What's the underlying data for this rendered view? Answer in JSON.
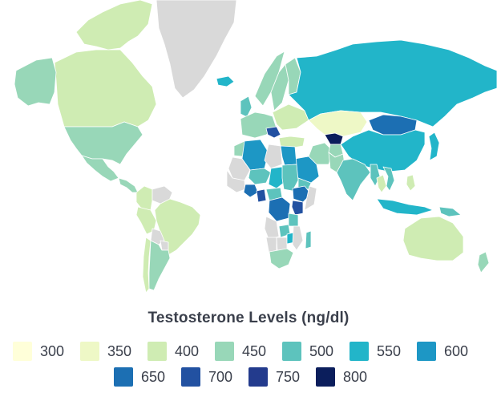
{
  "map": {
    "countries": [
      {
        "name": "Greenland",
        "value": null
      },
      {
        "name": "Canada",
        "value": 400
      },
      {
        "name": "Alaska",
        "value": 450
      },
      {
        "name": "Canadian Arctic Islands",
        "value": 400
      },
      {
        "name": "United States",
        "value": 450
      },
      {
        "name": "Mexico",
        "value": 450
      },
      {
        "name": "Central America",
        "value": 450
      },
      {
        "name": "Colombia",
        "value": 400
      },
      {
        "name": "Venezuela",
        "value": null
      },
      {
        "name": "Brazil",
        "value": 400
      },
      {
        "name": "Peru",
        "value": 400
      },
      {
        "name": "Bolivia",
        "value": null
      },
      {
        "name": "Paraguay",
        "value": null
      },
      {
        "name": "Chile",
        "value": 400
      },
      {
        "name": "Argentina",
        "value": 450
      },
      {
        "name": "Iceland",
        "value": 550
      },
      {
        "name": "United Kingdom",
        "value": 500
      },
      {
        "name": "Norway",
        "value": 450
      },
      {
        "name": "Sweden",
        "value": 450
      },
      {
        "name": "Finland",
        "value": 450
      },
      {
        "name": "Western Europe",
        "value": 450
      },
      {
        "name": "Eastern Europe",
        "value": 400
      },
      {
        "name": "Balkans",
        "value": 700
      },
      {
        "name": "Russia",
        "value": 550
      },
      {
        "name": "Kazakhstan",
        "value": 350
      },
      {
        "name": "Uzbekistan",
        "value": 800
      },
      {
        "name": "Mongolia",
        "value": 650
      },
      {
        "name": "China",
        "value": 550
      },
      {
        "name": "Japan",
        "value": 550
      },
      {
        "name": "Turkey",
        "value": 400
      },
      {
        "name": "Iran",
        "value": 450
      },
      {
        "name": "Saudi Arabia",
        "value": 600
      },
      {
        "name": "Yemen",
        "value": 500
      },
      {
        "name": "Afghanistan",
        "value": 450
      },
      {
        "name": "Pakistan",
        "value": 450
      },
      {
        "name": "India",
        "value": 500
      },
      {
        "name": "Myanmar",
        "value": 500
      },
      {
        "name": "Thailand",
        "value": 400
      },
      {
        "name": "Vietnam",
        "value": 500
      },
      {
        "name": "Indonesia",
        "value": 550
      },
      {
        "name": "Papua New Guinea",
        "value": 500
      },
      {
        "name": "Philippines",
        "value": 400
      },
      {
        "name": "Morocco",
        "value": 450
      },
      {
        "name": "Algeria",
        "value": 600
      },
      {
        "name": "Libya",
        "value": null
      },
      {
        "name": "Egypt",
        "value": 600
      },
      {
        "name": "Mali",
        "value": null
      },
      {
        "name": "Niger",
        "value": 500
      },
      {
        "name": "Chad",
        "value": 550
      },
      {
        "name": "Sudan",
        "value": 500
      },
      {
        "name": "Ethiopia",
        "value": 650
      },
      {
        "name": "Somalia",
        "value": null
      },
      {
        "name": "West Africa",
        "value": null
      },
      {
        "name": "Nigeria",
        "value": 650
      },
      {
        "name": "Cameroon",
        "value": 700
      },
      {
        "name": "Central African Republic",
        "value": 500
      },
      {
        "name": "DR Congo",
        "value": 650
      },
      {
        "name": "Kenya",
        "value": 700
      },
      {
        "name": "Tanzania",
        "value": 500
      },
      {
        "name": "Angola",
        "value": null
      },
      {
        "name": "Zambia",
        "value": 500
      },
      {
        "name": "Namibia",
        "value": null
      },
      {
        "name": "Botswana",
        "value": null
      },
      {
        "name": "Zimbabwe",
        "value": 550
      },
      {
        "name": "Mozambique",
        "value": null
      },
      {
        "name": "South Africa",
        "value": 450
      },
      {
        "name": "Madagascar",
        "value": 500
      },
      {
        "name": "Australia",
        "value": 400
      },
      {
        "name": "New Zealand",
        "value": 450
      }
    ]
  },
  "legend": {
    "title": "Testosterone Levels (ng/dl)",
    "rows": [
      [
        {
          "label": "300",
          "color": "#ffffd9"
        },
        {
          "label": "350",
          "color": "#eef8c6"
        },
        {
          "label": "400",
          "color": "#cfecb3"
        },
        {
          "label": "450",
          "color": "#98d7b8"
        },
        {
          "label": "500",
          "color": "#5dc3bd"
        },
        {
          "label": "550",
          "color": "#22b5c9"
        },
        {
          "label": "600",
          "color": "#1d97c5"
        }
      ],
      [
        {
          "label": "650",
          "color": "#1c6fb3"
        },
        {
          "label": "700",
          "color": "#2251a1"
        },
        {
          "label": "750",
          "color": "#233b8d"
        },
        {
          "label": "800",
          "color": "#0b1e5c"
        }
      ]
    ],
    "no_data_color": "#d9d9d9"
  }
}
